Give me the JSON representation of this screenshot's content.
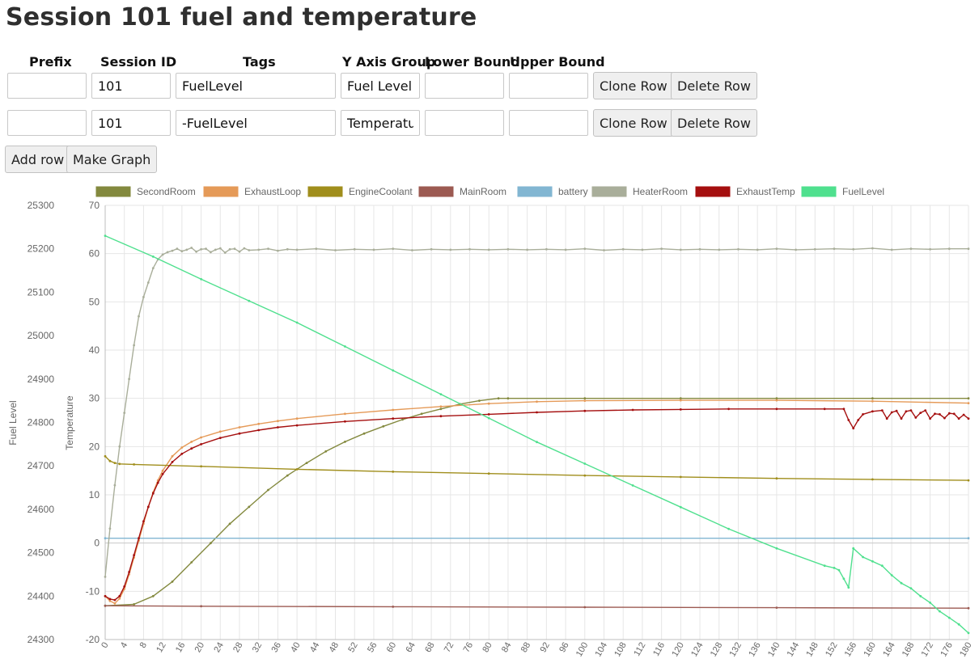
{
  "page": {
    "title": "Session 101 fuel and temperature"
  },
  "table": {
    "headers": [
      "Prefix",
      "Session ID",
      "Tags",
      "Y Axis Group",
      "Lower Bound",
      "Upper Bound"
    ],
    "rows": [
      {
        "prefix": "",
        "session_id": "101",
        "tags": "FuelLevel",
        "y_axis_group": "Fuel Level",
        "lower_bound": "",
        "upper_bound": ""
      },
      {
        "prefix": "",
        "session_id": "101",
        "tags": "-FuelLevel",
        "y_axis_group": "Temperature",
        "lower_bound": "",
        "upper_bound": ""
      }
    ],
    "clone_label": "Clone Row",
    "delete_label": "Delete Row"
  },
  "actions": {
    "add_row": "Add row",
    "make_graph": "Make Graph"
  },
  "chart_data": {
    "type": "line",
    "title": "",
    "grid": true,
    "legend_position": "top",
    "x": {
      "min": 0,
      "max": 180,
      "tick_step": 4
    },
    "y_axes": [
      {
        "id": "fuel",
        "label": "Fuel Level",
        "min": 24300,
        "max": 25300,
        "tick_step": 100,
        "position": "left"
      },
      {
        "id": "temp",
        "label": "Temperature",
        "min": -20,
        "max": 70,
        "tick_step": 10,
        "position": "left"
      }
    ],
    "series": [
      {
        "name": "SecondRoom",
        "axis": "temp",
        "color": "#83893e",
        "points": [
          [
            0,
            -13
          ],
          [
            6,
            -12.7
          ],
          [
            10,
            -11
          ],
          [
            14,
            -8
          ],
          [
            18,
            -4
          ],
          [
            22,
            0
          ],
          [
            26,
            4
          ],
          [
            30,
            7.5
          ],
          [
            34,
            11
          ],
          [
            38,
            14
          ],
          [
            42,
            16.6
          ],
          [
            46,
            19
          ],
          [
            50,
            21
          ],
          [
            54,
            22.7
          ],
          [
            58,
            24.2
          ],
          [
            62,
            25.6
          ],
          [
            66,
            26.8
          ],
          [
            70,
            27.8
          ],
          [
            74,
            28.8
          ],
          [
            78,
            29.5
          ],
          [
            82,
            30
          ],
          [
            84,
            30
          ],
          [
            100,
            30
          ],
          [
            120,
            30
          ],
          [
            140,
            30
          ],
          [
            160,
            30
          ],
          [
            180,
            30
          ]
        ]
      },
      {
        "name": "ExhaustLoop",
        "axis": "temp",
        "color": "#e59a58",
        "points": [
          [
            0,
            -11
          ],
          [
            1,
            -12
          ],
          [
            2,
            -12.5
          ],
          [
            3,
            -11.5
          ],
          [
            4,
            -9.5
          ],
          [
            5,
            -6.5
          ],
          [
            6,
            -3
          ],
          [
            7,
            0.5
          ],
          [
            8,
            4
          ],
          [
            9,
            7.5
          ],
          [
            10,
            10.5
          ],
          [
            11,
            13
          ],
          [
            12,
            15
          ],
          [
            14,
            18
          ],
          [
            16,
            19.8
          ],
          [
            18,
            21
          ],
          [
            20,
            21.9
          ],
          [
            24,
            23.1
          ],
          [
            28,
            24
          ],
          [
            32,
            24.7
          ],
          [
            36,
            25.3
          ],
          [
            40,
            25.8
          ],
          [
            50,
            26.8
          ],
          [
            60,
            27.6
          ],
          [
            70,
            28.3
          ],
          [
            80,
            28.9
          ],
          [
            90,
            29.3
          ],
          [
            100,
            29.5
          ],
          [
            120,
            29.6
          ],
          [
            140,
            29.6
          ],
          [
            160,
            29.4
          ],
          [
            180,
            29
          ]
        ]
      },
      {
        "name": "EngineCoolant",
        "axis": "temp",
        "color": "#a08e1c",
        "points": [
          [
            0,
            18
          ],
          [
            1,
            17
          ],
          [
            2,
            16.6
          ],
          [
            3,
            16.4
          ],
          [
            6,
            16.3
          ],
          [
            20,
            15.9
          ],
          [
            40,
            15.3
          ],
          [
            60,
            14.8
          ],
          [
            80,
            14.4
          ],
          [
            100,
            14
          ],
          [
            120,
            13.7
          ],
          [
            140,
            13.4
          ],
          [
            160,
            13.2
          ],
          [
            180,
            13
          ]
        ]
      },
      {
        "name": "MainRoom",
        "axis": "temp",
        "color": "#9c5a52",
        "points": [
          [
            0,
            -13
          ],
          [
            20,
            -13.1
          ],
          [
            60,
            -13.2
          ],
          [
            100,
            -13.3
          ],
          [
            140,
            -13.4
          ],
          [
            180,
            -13.5
          ]
        ]
      },
      {
        "name": "battery",
        "axis": "temp",
        "color": "#82b6d2",
        "points": [
          [
            0,
            1
          ],
          [
            180,
            1
          ]
        ]
      },
      {
        "name": "HeaterRoom",
        "axis": "temp",
        "color": "#a9ae9a",
        "points": [
          [
            0,
            -7
          ],
          [
            1,
            3
          ],
          [
            2,
            12
          ],
          [
            3,
            20
          ],
          [
            4,
            27
          ],
          [
            5,
            34
          ],
          [
            6,
            41
          ],
          [
            7,
            47
          ],
          [
            8,
            51
          ],
          [
            9,
            54
          ],
          [
            10,
            57
          ],
          [
            11,
            58.8
          ],
          [
            12,
            59.8
          ],
          [
            13,
            60.3
          ],
          [
            14,
            60.6
          ],
          [
            15,
            61
          ],
          [
            16,
            60.5
          ],
          [
            17,
            60.8
          ],
          [
            18,
            61.2
          ],
          [
            19,
            60.4
          ],
          [
            20,
            60.9
          ],
          [
            21,
            61
          ],
          [
            22,
            60.3
          ],
          [
            23,
            60.8
          ],
          [
            24,
            61.1
          ],
          [
            25,
            60.2
          ],
          [
            26,
            60.9
          ],
          [
            27,
            61
          ],
          [
            28,
            60.4
          ],
          [
            29,
            61.1
          ],
          [
            30,
            60.7
          ],
          [
            32,
            60.8
          ],
          [
            34,
            61
          ],
          [
            36,
            60.6
          ],
          [
            38,
            60.9
          ],
          [
            40,
            60.8
          ],
          [
            44,
            61
          ],
          [
            48,
            60.7
          ],
          [
            52,
            60.9
          ],
          [
            56,
            60.8
          ],
          [
            60,
            61
          ],
          [
            64,
            60.7
          ],
          [
            68,
            60.9
          ],
          [
            72,
            60.8
          ],
          [
            76,
            60.9
          ],
          [
            80,
            60.8
          ],
          [
            84,
            60.9
          ],
          [
            88,
            60.8
          ],
          [
            92,
            60.9
          ],
          [
            96,
            60.8
          ],
          [
            100,
            61
          ],
          [
            104,
            60.7
          ],
          [
            108,
            60.9
          ],
          [
            112,
            60.8
          ],
          [
            116,
            61
          ],
          [
            120,
            60.8
          ],
          [
            124,
            60.9
          ],
          [
            128,
            60.8
          ],
          [
            132,
            60.9
          ],
          [
            136,
            60.8
          ],
          [
            140,
            61
          ],
          [
            144,
            60.8
          ],
          [
            148,
            60.9
          ],
          [
            152,
            61
          ],
          [
            156,
            60.9
          ],
          [
            160,
            61.1
          ],
          [
            164,
            60.8
          ],
          [
            168,
            61
          ],
          [
            172,
            60.9
          ],
          [
            176,
            61
          ],
          [
            180,
            61
          ]
        ]
      },
      {
        "name": "ExhaustTemp",
        "axis": "temp",
        "color": "#a50f0f",
        "points": [
          [
            0,
            -11
          ],
          [
            1,
            -11.6
          ],
          [
            2,
            -11.8
          ],
          [
            3,
            -11
          ],
          [
            4,
            -9
          ],
          [
            5,
            -6
          ],
          [
            6,
            -2.5
          ],
          [
            7,
            1
          ],
          [
            8,
            4.5
          ],
          [
            9,
            7.5
          ],
          [
            10,
            10.3
          ],
          [
            11,
            12.5
          ],
          [
            12,
            14.3
          ],
          [
            14,
            16.8
          ],
          [
            16,
            18.5
          ],
          [
            18,
            19.6
          ],
          [
            20,
            20.5
          ],
          [
            24,
            21.8
          ],
          [
            28,
            22.7
          ],
          [
            32,
            23.4
          ],
          [
            36,
            24
          ],
          [
            40,
            24.4
          ],
          [
            50,
            25.2
          ],
          [
            60,
            25.8
          ],
          [
            70,
            26.3
          ],
          [
            80,
            26.7
          ],
          [
            90,
            27.1
          ],
          [
            100,
            27.4
          ],
          [
            110,
            27.6
          ],
          [
            120,
            27.7
          ],
          [
            130,
            27.8
          ],
          [
            140,
            27.8
          ],
          [
            150,
            27.8
          ],
          [
            154,
            27.8
          ],
          [
            155,
            25.5
          ],
          [
            156,
            23.8
          ],
          [
            157,
            25.5
          ],
          [
            158,
            26.7
          ],
          [
            160,
            27.3
          ],
          [
            162,
            27.5
          ],
          [
            163,
            25.8
          ],
          [
            164,
            27.1
          ],
          [
            165,
            27.4
          ],
          [
            166,
            25.8
          ],
          [
            167,
            27.3
          ],
          [
            168,
            27.5
          ],
          [
            169,
            26
          ],
          [
            170,
            27
          ],
          [
            171,
            27.5
          ],
          [
            172,
            25.8
          ],
          [
            173,
            26.8
          ],
          [
            174,
            26.7
          ],
          [
            175,
            25.9
          ],
          [
            176,
            26.9
          ],
          [
            177,
            26.8
          ],
          [
            178,
            25.8
          ],
          [
            179,
            26.6
          ],
          [
            180,
            25.8
          ]
        ]
      },
      {
        "name": "FuelLevel",
        "axis": "fuel",
        "color": "#4fe08e",
        "points": [
          [
            0,
            25230
          ],
          [
            10,
            25182
          ],
          [
            20,
            25130
          ],
          [
            30,
            25080
          ],
          [
            40,
            25030
          ],
          [
            50,
            24975
          ],
          [
            60,
            24920
          ],
          [
            70,
            24865
          ],
          [
            80,
            24810
          ],
          [
            90,
            24755
          ],
          [
            100,
            24705
          ],
          [
            110,
            24655
          ],
          [
            120,
            24605
          ],
          [
            130,
            24555
          ],
          [
            140,
            24510
          ],
          [
            150,
            24470
          ],
          [
            152,
            24465
          ],
          [
            153,
            24460
          ],
          [
            154,
            24440
          ],
          [
            155,
            24420
          ],
          [
            156,
            24510
          ],
          [
            158,
            24490
          ],
          [
            160,
            24480
          ],
          [
            162,
            24470
          ],
          [
            164,
            24448
          ],
          [
            166,
            24430
          ],
          [
            168,
            24418
          ],
          [
            170,
            24400
          ],
          [
            172,
            24385
          ],
          [
            174,
            24365
          ],
          [
            176,
            24350
          ],
          [
            178,
            24335
          ],
          [
            180,
            24315
          ]
        ]
      }
    ]
  }
}
